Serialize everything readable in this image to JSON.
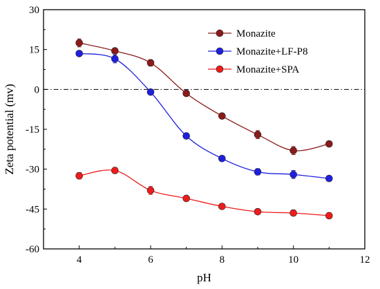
{
  "chart_data": {
    "type": "line",
    "xlabel": "pH",
    "ylabel": "Zeta potential (mv)",
    "xlim": [
      3,
      12
    ],
    "ylim": [
      -60,
      30
    ],
    "xticks": [
      "4",
      "6",
      "8",
      "10",
      "12"
    ],
    "yticks": [
      "30",
      "15",
      "0",
      "-15",
      "-30",
      "-45",
      "-60"
    ],
    "xtick_values": [
      4,
      6,
      8,
      10,
      12
    ],
    "ytick_values": [
      30,
      15,
      0,
      -15,
      -30,
      -45,
      -60
    ],
    "reference_line": {
      "y": 0,
      "style": "dash-dot"
    },
    "legend_position": "top-right",
    "series": [
      {
        "name": "Monazite",
        "color": "#8b1a1a",
        "x": [
          4,
          5,
          6,
          7,
          8,
          9,
          10,
          11
        ],
        "y": [
          17.5,
          14.5,
          10,
          -1.5,
          -10,
          -17,
          -23,
          -20.5
        ],
        "err": [
          1.5,
          0.8,
          1.2,
          0.8,
          0.8,
          1.5,
          1.5,
          0.8
        ]
      },
      {
        "name": "Monazite+LF-P8",
        "color": "#1f1fe0",
        "x": [
          4,
          5,
          6,
          7,
          8,
          9,
          10,
          11
        ],
        "y": [
          13.5,
          11.5,
          -1,
          -17.5,
          -26,
          -31,
          -32,
          -33.5
        ],
        "err": [
          0.8,
          1.5,
          0.8,
          0.8,
          0.8,
          1.2,
          1.5,
          0.8
        ]
      },
      {
        "name": "Monazite+SPA",
        "color": "#ee1c1c",
        "x": [
          4,
          5,
          6,
          7,
          8,
          9,
          10,
          11
        ],
        "y": [
          -32.5,
          -30.5,
          -38,
          -41,
          -44,
          -46,
          -46.5,
          -47.5
        ],
        "err": [
          1.2,
          0.8,
          1.5,
          0.8,
          0.8,
          0.8,
          0.8,
          0.8
        ]
      }
    ]
  }
}
